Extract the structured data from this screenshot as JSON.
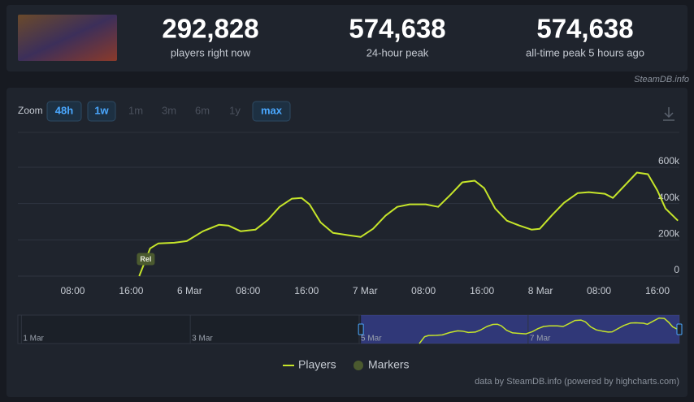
{
  "stats": [
    {
      "value": "292,828",
      "label": "players right now"
    },
    {
      "value": "574,638",
      "label": "24-hour peak"
    },
    {
      "value": "574,638",
      "label": "all-time peak 5 hours ago"
    }
  ],
  "source": "SteamDB.info",
  "zoom": {
    "label": "Zoom",
    "buttons": [
      {
        "label": "48h",
        "enabled": true
      },
      {
        "label": "1w",
        "enabled": true
      },
      {
        "label": "1m",
        "enabled": false
      },
      {
        "label": "3m",
        "enabled": false
      },
      {
        "label": "6m",
        "enabled": false
      },
      {
        "label": "1y",
        "enabled": false
      },
      {
        "label": "max",
        "enabled": true
      }
    ]
  },
  "credit": "data by SteamDB.info (powered by highcharts.com)",
  "chart_data": {
    "type": "line",
    "x": [
      17.1,
      18.6,
      19.7,
      21.9,
      23.6,
      25.8,
      28,
      29.3,
      31,
      33,
      34.7,
      36.3,
      38,
      39.3,
      40.4,
      41.9,
      43.6,
      45.8,
      47.4,
      49.1,
      50.8,
      52.4,
      54.1,
      56.3,
      58,
      59.7,
      61.3,
      63,
      64.3,
      65.8,
      67.4,
      69.1,
      70.8,
      71.9,
      73.6,
      75.2,
      77.1,
      78.6,
      80.8,
      81.9,
      83.6,
      85.2,
      86.7,
      88,
      89.1,
      90.8
    ],
    "series": [
      {
        "name": "Players",
        "color": "#c6e52a",
        "values": [
          0,
          153000,
          180000,
          184000,
          193000,
          247000,
          283000,
          279000,
          247000,
          256000,
          310000,
          382000,
          427000,
          431000,
          396000,
          297000,
          238000,
          225000,
          216000,
          261000,
          333000,
          382000,
          396000,
          396000,
          382000,
          449000,
          517000,
          526000,
          485000,
          373000,
          306000,
          279000,
          256000,
          261000,
          337000,
          404000,
          458000,
          463000,
          454000,
          431000,
          503000,
          571000,
          562000,
          472000,
          373000,
          306000
        ]
      }
    ],
    "markers": {
      "name": "Markers",
      "color": "#4b5a2f",
      "labels": [
        "Rel"
      ],
      "x": [
        18
      ]
    },
    "xlim": [
      0.5,
      91
    ],
    "xticks": [
      {
        "value": 8,
        "label": "08:00"
      },
      {
        "value": 16,
        "label": "16:00"
      },
      {
        "value": 24,
        "label": "6 Mar"
      },
      {
        "value": 32,
        "label": "08:00"
      },
      {
        "value": 40,
        "label": "16:00"
      },
      {
        "value": 48,
        "label": "7 Mar"
      },
      {
        "value": 56,
        "label": "08:00"
      },
      {
        "value": 64,
        "label": "16:00"
      },
      {
        "value": 72,
        "label": "8 Mar"
      },
      {
        "value": 80,
        "label": "08:00"
      },
      {
        "value": 88,
        "label": "16:00"
      }
    ],
    "ylim": [
      0,
      600000
    ],
    "yticks": [
      0,
      {
        "value": 200000,
        "label": "200k"
      },
      {
        "value": 400000,
        "label": "400k"
      },
      {
        "value": 600000,
        "label": "600k"
      }
    ],
    "grid": true,
    "navigator": {
      "xlim": [
        -97,
        91
      ],
      "xticks": [
        {
          "value": -96,
          "label": "1 Mar"
        },
        {
          "value": -48,
          "label": "3 Mar"
        },
        {
          "value": 0,
          "label": "5 Mar"
        },
        {
          "value": 48,
          "label": "7 Mar"
        }
      ]
    }
  }
}
